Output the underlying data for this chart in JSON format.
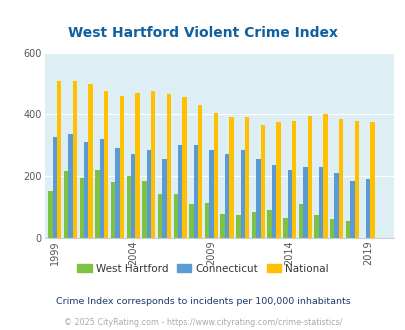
{
  "title": "West Hartford Violent Crime Index",
  "title_color": "#1060a0",
  "color_wh": "#7dc242",
  "color_ct": "#5b9bd5",
  "color_nat": "#ffc000",
  "plot_bg": "#ddeef5",
  "note_text": "Crime Index corresponds to incidents per 100,000 inhabitants",
  "note_color": "#1a3a6a",
  "copyright_text": "© 2025 CityRating.com - https://www.cityrating.com/crime-statistics/",
  "copyright_color": "#aaaaaa",
  "legend_labels": [
    "West Hartford",
    "Connecticut",
    "National"
  ],
  "xtick_years": [
    1999,
    2004,
    2009,
    2014,
    2019
  ],
  "ylim": [
    0,
    600
  ],
  "yticks": [
    0,
    200,
    400,
    600
  ],
  "years": [
    1999,
    2000,
    2001,
    2002,
    2003,
    2004,
    2005,
    2006,
    2007,
    2008,
    2009,
    2010,
    2011,
    2012,
    2013,
    2014,
    2015,
    2016,
    2017,
    2018,
    2019,
    2020
  ],
  "wh": [
    150,
    215,
    195,
    220,
    180,
    200,
    185,
    140,
    140,
    108,
    112,
    78,
    75,
    82,
    90,
    65,
    110,
    75,
    62,
    55,
    0,
    0
  ],
  "ct": [
    325,
    335,
    310,
    320,
    290,
    270,
    285,
    255,
    300,
    300,
    285,
    270,
    285,
    255,
    235,
    220,
    230,
    230,
    210,
    185,
    190,
    0
  ],
  "nat": [
    510,
    510,
    500,
    475,
    460,
    470,
    475,
    465,
    455,
    430,
    405,
    390,
    390,
    365,
    375,
    380,
    395,
    400,
    385,
    380,
    375,
    0
  ]
}
